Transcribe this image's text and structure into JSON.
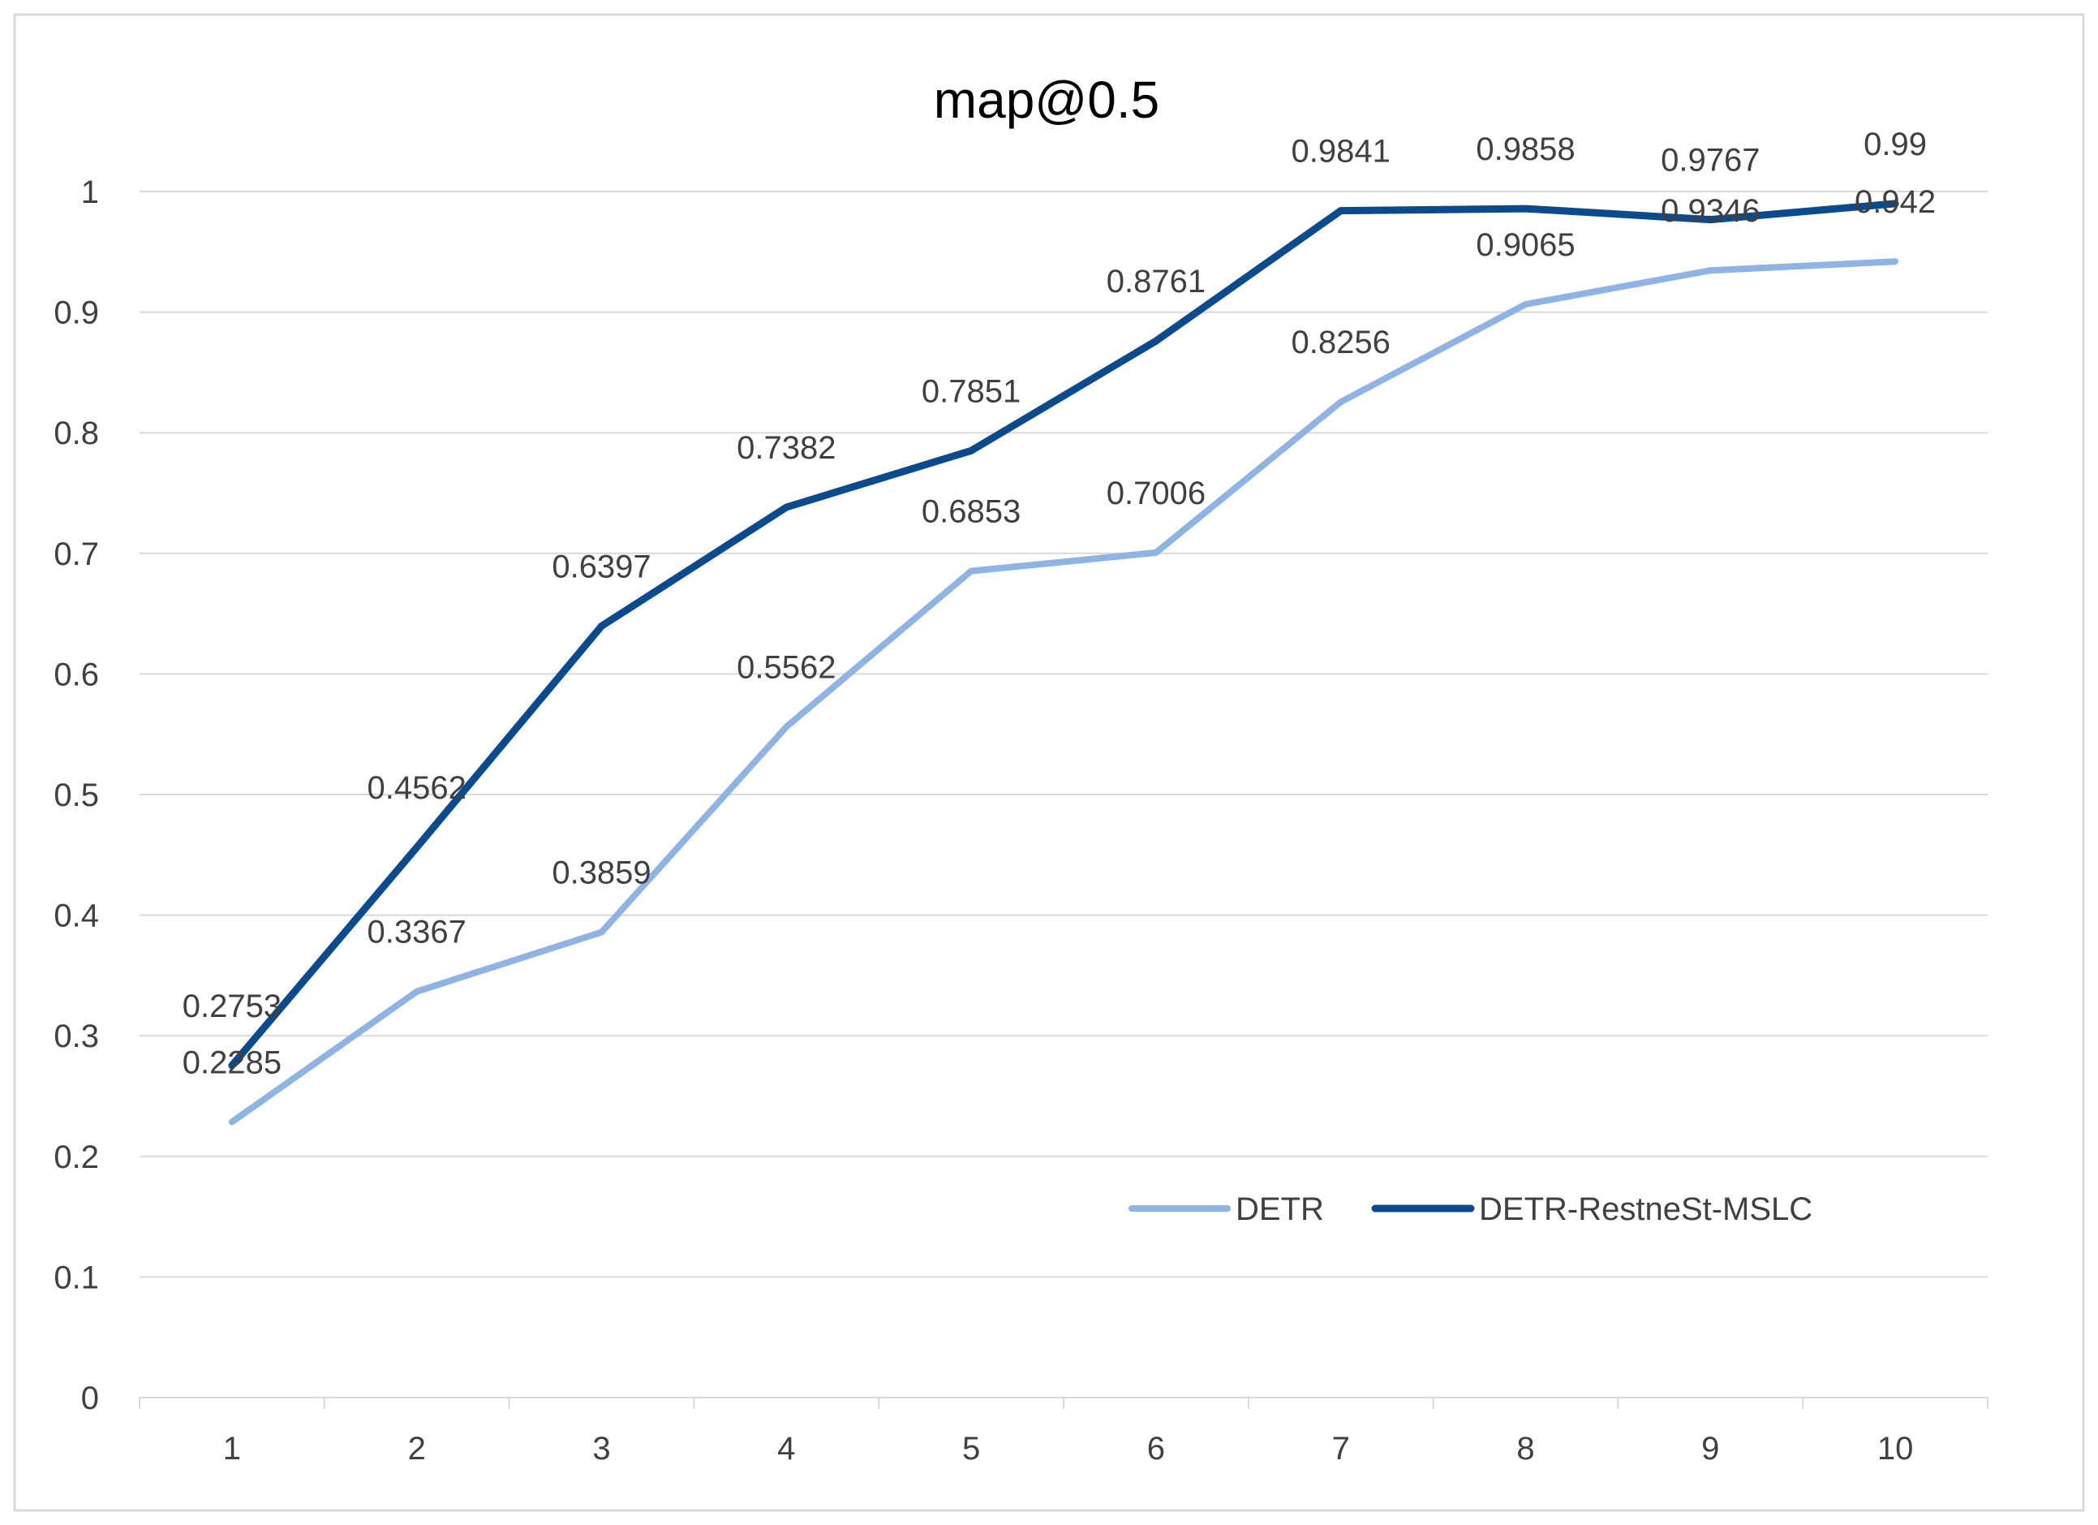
{
  "chart_data": {
    "type": "line",
    "title": "map@0.5",
    "xlabel": "",
    "ylabel": "",
    "categories": [
      "1",
      "2",
      "3",
      "4",
      "5",
      "6",
      "7",
      "8",
      "9",
      "10"
    ],
    "y_ticks": [
      "0",
      "0.1",
      "0.2",
      "0.3",
      "0.4",
      "0.5",
      "0.6",
      "0.7",
      "0.8",
      "0.9",
      "1"
    ],
    "ylim": [
      0,
      1
    ],
    "grid": "horizontal",
    "legend_position": "bottom-right",
    "series": [
      {
        "name": "DETR",
        "color": "#8fb3e3",
        "values": [
          0.2285,
          0.3367,
          0.3859,
          0.5562,
          0.6853,
          0.7006,
          0.8256,
          0.9065,
          0.9346,
          0.942
        ],
        "labels": [
          "0.2285",
          "0.3367",
          "0.3859",
          "0.5562",
          "0.6853",
          "0.7006",
          "0.8256",
          "0.9065",
          "0.9346",
          "0.942"
        ]
      },
      {
        "name": "DETR-RestneSt-MSLC",
        "color": "#0b4a8c",
        "values": [
          0.2753,
          0.4562,
          0.6397,
          0.7382,
          0.7851,
          0.8761,
          0.9841,
          0.9858,
          0.9767,
          0.99
        ],
        "labels": [
          "0.2753",
          "0.4562",
          "0.6397",
          "0.7382",
          "0.7851",
          "0.8761",
          "0.9841",
          "0.9858",
          "0.9767",
          "0.99"
        ]
      }
    ]
  }
}
